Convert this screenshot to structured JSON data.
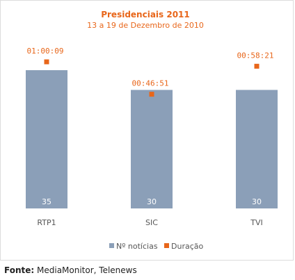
{
  "chart_data": {
    "type": "bar",
    "title": "Presidenciais 2011",
    "subtitle": "13 a 19 de Dezembro de 2010",
    "categories": [
      "RTP1",
      "SIC",
      "TVI"
    ],
    "series": [
      {
        "name": "Nº notícias",
        "values": [
          35,
          30,
          30
        ],
        "color": "#8b9fb8"
      },
      {
        "name": "Duração",
        "values": [
          "01:00:09",
          "00:46:51",
          "00:58:21"
        ],
        "color": "#e8661a"
      }
    ],
    "ylim": [
      0,
      35
    ],
    "duration_range_seconds": [
      0,
      3609
    ],
    "legend_position": "bottom",
    "grid": false
  },
  "source": {
    "label": "Fonte:",
    "text": "MediaMonitor, Telenews"
  },
  "colors": {
    "title": "#e8661a",
    "axis_text": "#555555",
    "bar_label": "#ffffff"
  }
}
